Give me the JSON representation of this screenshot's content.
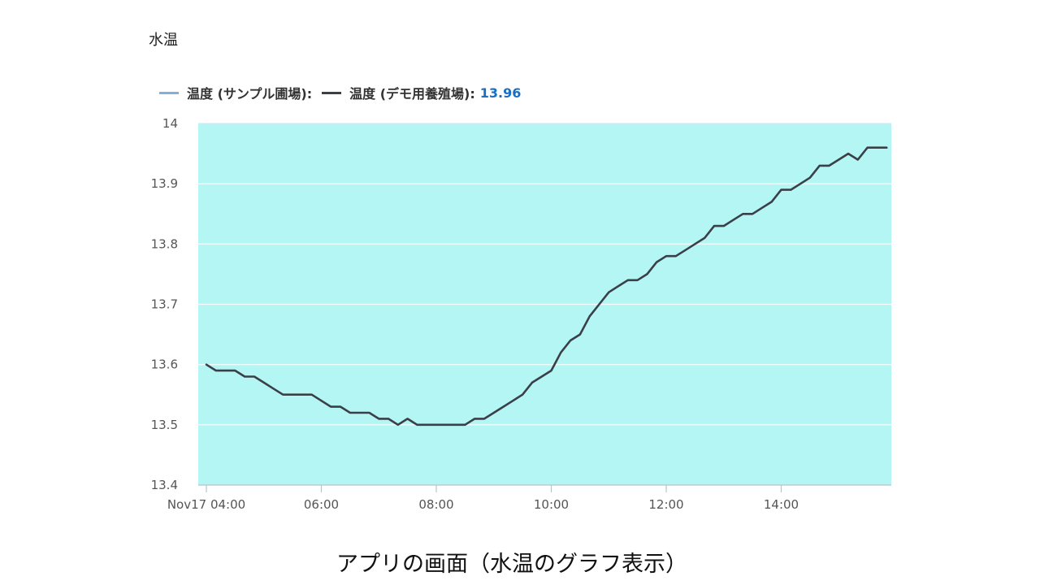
{
  "chart_data": {
    "type": "line",
    "title": "水温",
    "ylim": [
      13.4,
      14.0
    ],
    "yticks": [
      "14",
      "13.9",
      "13.8",
      "13.7",
      "13.6",
      "13.5",
      "13.4"
    ],
    "x_range": [
      "Nov17 04:00",
      "15:45"
    ],
    "xticks": [
      "Nov17 04:00",
      "06:00",
      "08:00",
      "10:00",
      "12:00",
      "14:00"
    ],
    "grid": true,
    "plot_background": "#b4f6f4",
    "legend_position": "top-left",
    "series": [
      {
        "name": "温度 (サンプル圃場):",
        "color": "#7fb1dc",
        "values": []
      },
      {
        "name": "温度 (デモ用養殖場):",
        "color": "#3a3f48",
        "current_value": "13.96",
        "x": [
          "04:00",
          "04:10",
          "04:20",
          "04:30",
          "04:40",
          "04:50",
          "05:00",
          "05:10",
          "05:20",
          "05:30",
          "05:40",
          "05:50",
          "06:00",
          "06:10",
          "06:20",
          "06:30",
          "06:40",
          "06:50",
          "07:00",
          "07:10",
          "07:20",
          "07:30",
          "07:40",
          "07:50",
          "08:00",
          "08:10",
          "08:20",
          "08:30",
          "08:40",
          "08:50",
          "09:00",
          "09:10",
          "09:20",
          "09:30",
          "09:40",
          "09:50",
          "10:00",
          "10:10",
          "10:20",
          "10:30",
          "10:40",
          "10:50",
          "11:00",
          "11:10",
          "11:20",
          "11:30",
          "11:40",
          "11:50",
          "12:00",
          "12:10",
          "12:20",
          "12:30",
          "12:40",
          "12:50",
          "13:00",
          "13:10",
          "13:20",
          "13:30",
          "13:40",
          "13:50",
          "14:00",
          "14:10",
          "14:20",
          "14:30",
          "14:40",
          "14:50",
          "15:00",
          "15:10",
          "15:20",
          "15:30",
          "15:40",
          "15:50"
        ],
        "values": [
          13.6,
          13.59,
          13.59,
          13.59,
          13.58,
          13.58,
          13.57,
          13.56,
          13.55,
          13.55,
          13.55,
          13.55,
          13.54,
          13.53,
          13.53,
          13.52,
          13.52,
          13.52,
          13.51,
          13.51,
          13.5,
          13.51,
          13.5,
          13.5,
          13.5,
          13.5,
          13.5,
          13.5,
          13.51,
          13.51,
          13.52,
          13.53,
          13.54,
          13.55,
          13.57,
          13.58,
          13.59,
          13.62,
          13.64,
          13.65,
          13.68,
          13.7,
          13.72,
          13.73,
          13.74,
          13.74,
          13.75,
          13.77,
          13.78,
          13.78,
          13.79,
          13.8,
          13.81,
          13.83,
          13.83,
          13.84,
          13.85,
          13.85,
          13.86,
          13.87,
          13.89,
          13.89,
          13.9,
          13.91,
          13.93,
          13.93,
          13.94,
          13.95,
          13.94,
          13.96,
          13.96,
          13.96
        ]
      }
    ]
  },
  "caption": "アプリの画面（水温のグラフ表示）"
}
